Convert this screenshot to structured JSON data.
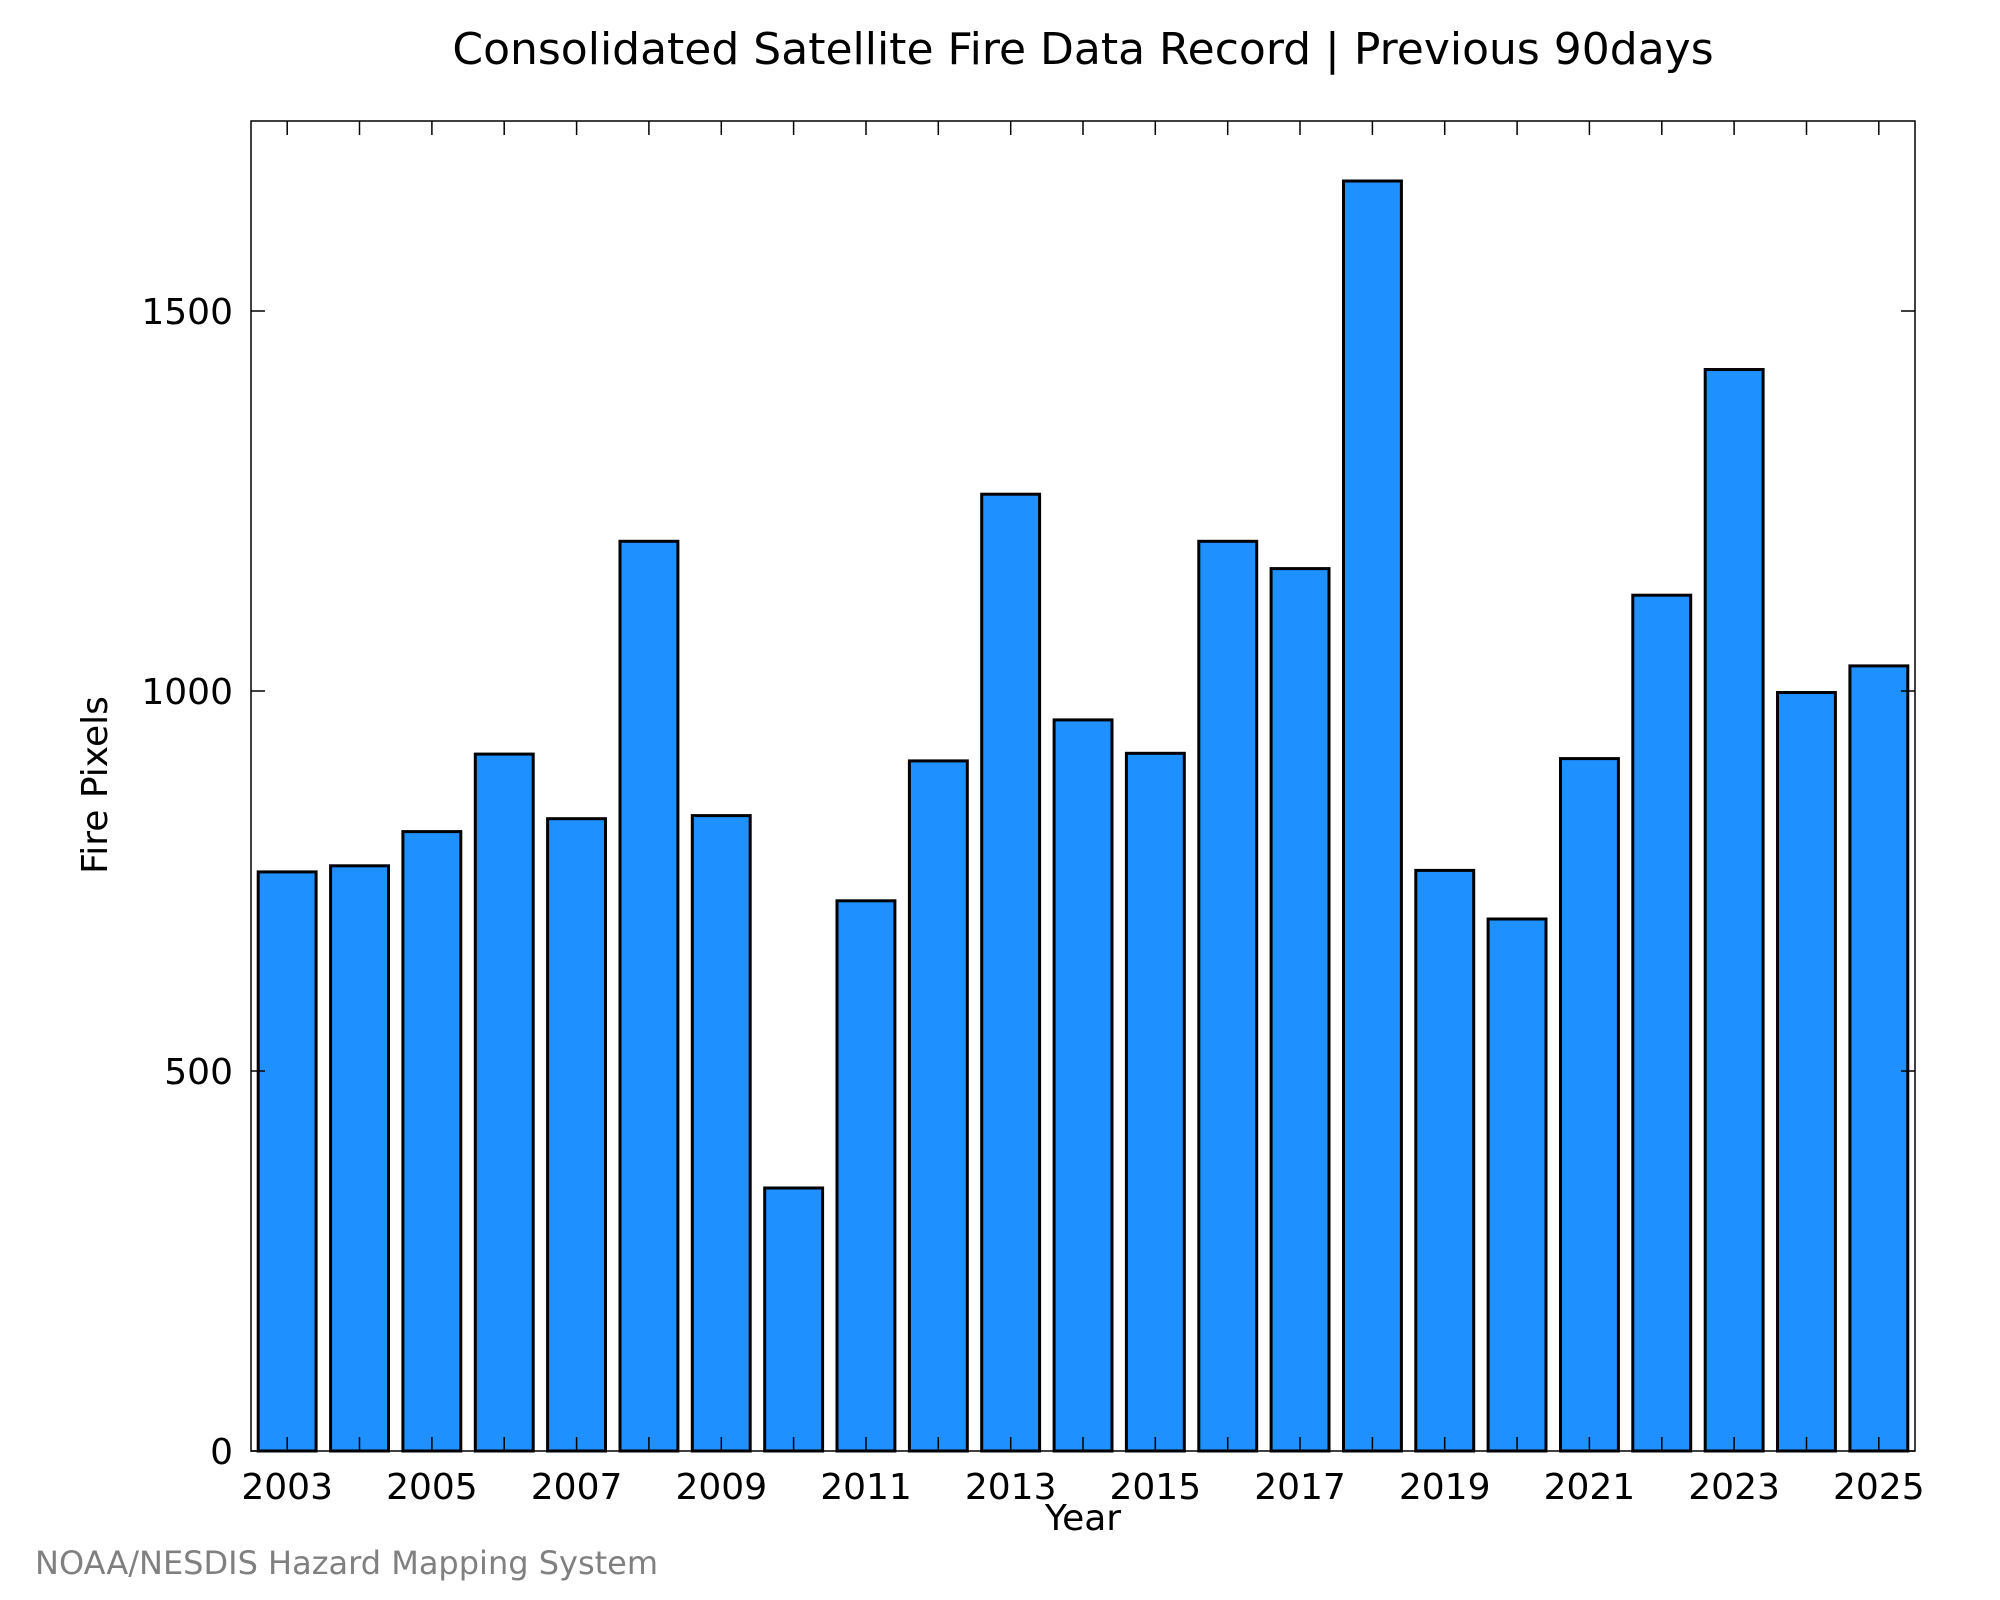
{
  "credit": "NOAA/NESDIS Hazard Mapping System",
  "colors": {
    "bar_fill": "#1e90ff",
    "bar_stroke": "#000000",
    "credit": "#808080"
  },
  "chart_data": {
    "type": "bar",
    "title": "Consolidated Satellite Fire Data Record | Previous 90days",
    "xlabel": "Year",
    "ylabel": "Fire Pixels",
    "categories": [
      "2003",
      "2004",
      "2005",
      "2006",
      "2007",
      "2008",
      "2009",
      "2010",
      "2011",
      "2012",
      "2013",
      "2014",
      "2015",
      "2016",
      "2017",
      "2018",
      "2019",
      "2020",
      "2021",
      "2022",
      "2023",
      "2024",
      "2025"
    ],
    "values": [
      762,
      770,
      815,
      917,
      832,
      1197,
      836,
      346,
      724,
      908,
      1259,
      962,
      918,
      1197,
      1161,
      1671,
      764,
      700,
      911,
      1126,
      1423,
      998,
      1033
    ],
    "x_tick_labels": [
      "2003",
      "2005",
      "2007",
      "2009",
      "2011",
      "2013",
      "2015",
      "2017",
      "2019",
      "2021",
      "2023",
      "2025"
    ],
    "y_ticks": [
      0,
      500,
      1000,
      1500
    ],
    "y_tick_labels": [
      "0",
      "500",
      "1000",
      "1500"
    ],
    "ylim": [
      0,
      1750
    ],
    "grid": false,
    "legend": "none"
  }
}
